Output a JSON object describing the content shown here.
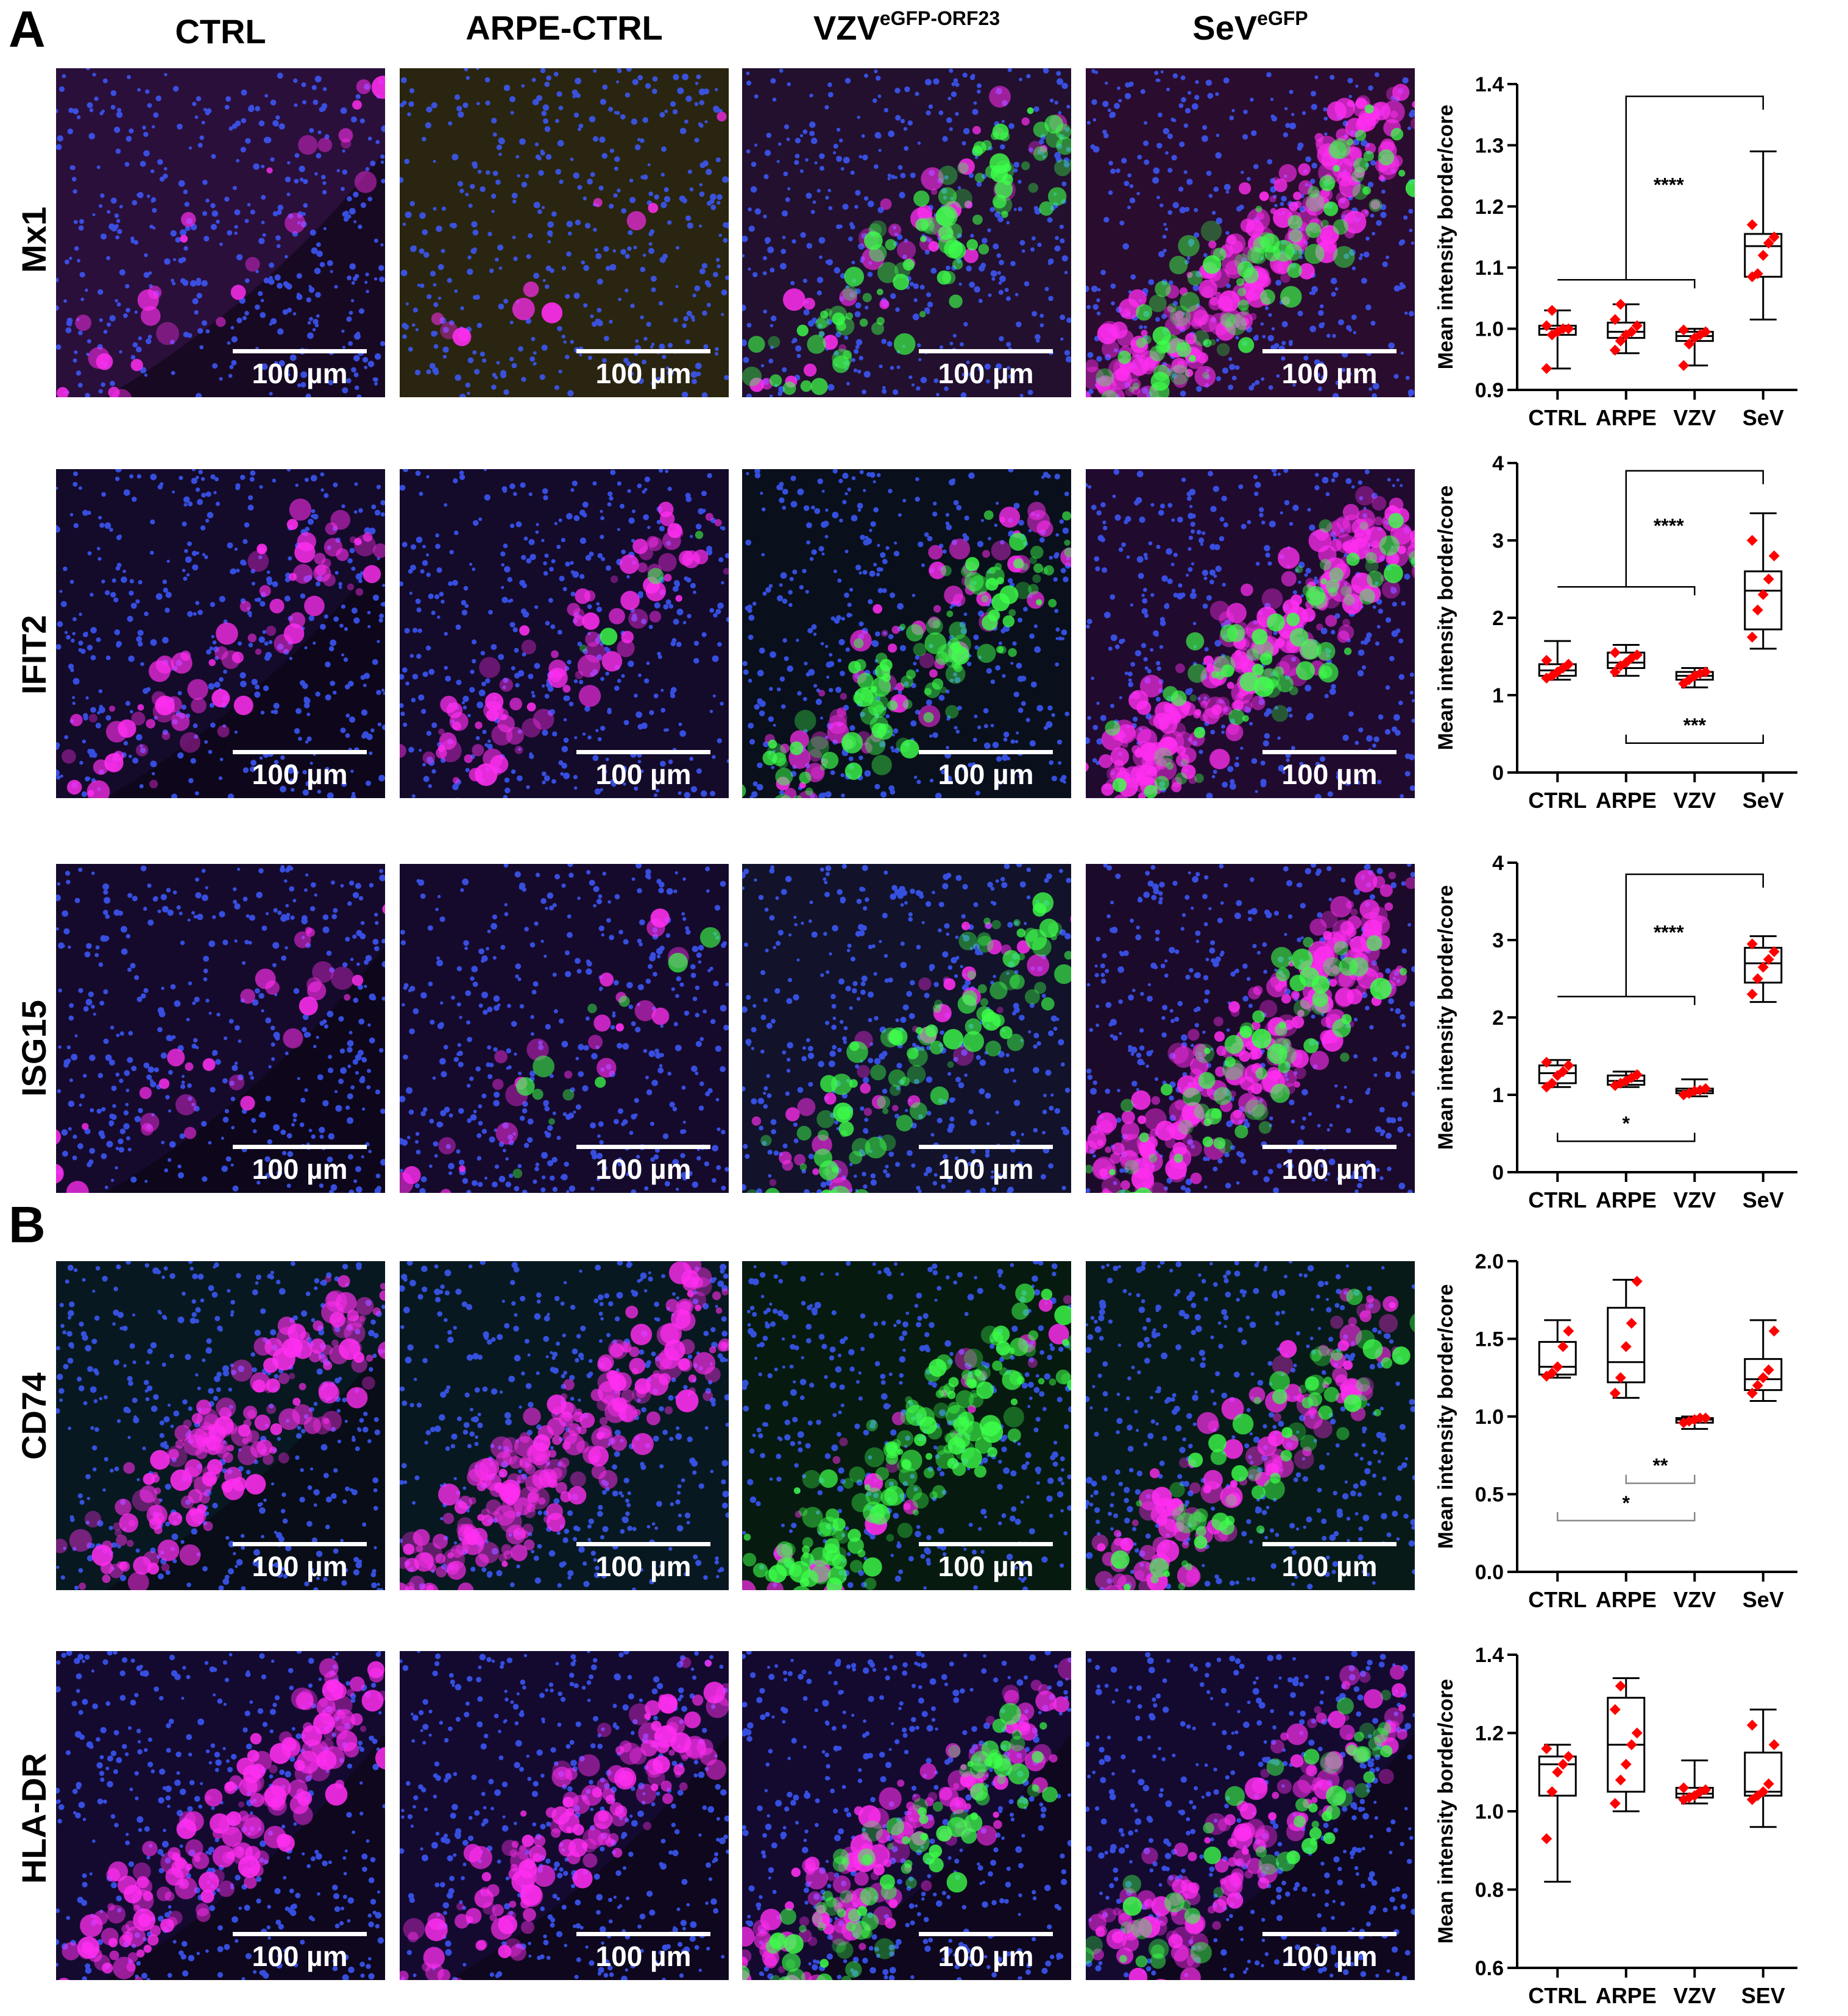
{
  "panel_letters": {
    "a": "A",
    "b": "B"
  },
  "columns": {
    "ctrl": {
      "label": "CTRL"
    },
    "arpe": {
      "label": "ARPE-CTRL"
    },
    "vzv": {
      "label": "VZV",
      "superscript": "eGFP-ORF23"
    },
    "sev": {
      "label": "SeV",
      "superscript": "eGFP"
    }
  },
  "scale_bar_label": "100 µm",
  "rows": [
    {
      "label": "Mx1",
      "magenta": 0.1,
      "green": [
        0.0,
        0.0,
        0.45,
        0.4
      ],
      "magentaLevels": [
        0.1,
        0.05,
        0.15,
        0.85
      ],
      "tint": [
        "#2a0f3a",
        "#2a2510",
        "#22102e",
        "#2a0c2e"
      ]
    },
    {
      "label": "IFIT2",
      "magenta": 0.3,
      "green": [
        0.0,
        0.02,
        0.55,
        0.35
      ],
      "magentaLevels": [
        0.3,
        0.35,
        0.25,
        0.95
      ],
      "tint": [
        "#140a2a",
        "#140a2a",
        "#0a0f1c",
        "#200a2e"
      ]
    },
    {
      "label": "ISG15",
      "magenta": 0.15,
      "green": [
        0.0,
        0.05,
        0.45,
        0.3
      ],
      "magentaLevels": [
        0.12,
        0.1,
        0.15,
        0.9
      ],
      "tint": [
        "#160a2c",
        "#160a2c",
        "#12122a",
        "#1c0a2a"
      ]
    },
    {
      "label": "CD74",
      "magenta": 0.6,
      "green": [
        0.0,
        0.0,
        0.75,
        0.3
      ],
      "magentaLevels": [
        0.7,
        0.9,
        0.1,
        0.45
      ],
      "tint": [
        "#081820",
        "#081820",
        "#061a10",
        "#081a18"
      ]
    },
    {
      "label": "HLA-DR",
      "magenta": 0.6,
      "green": [
        0.0,
        0.0,
        0.45,
        0.25
      ],
      "magentaLevels": [
        0.65,
        0.6,
        0.55,
        0.55
      ],
      "tint": [
        "#140a30",
        "#140a30",
        "#140a30",
        "#140a30"
      ]
    }
  ],
  "chart_data": [
    {
      "type": "box",
      "name": "Mx1",
      "ylabel": "Mean intensity border/core",
      "ylim": [
        0.9,
        1.4
      ],
      "yticks": [
        0.9,
        1.0,
        1.1,
        1.2,
        1.3,
        1.4
      ],
      "ytick_labels": [
        "0.9",
        "1.0",
        "1.1",
        "1.2",
        "1.3",
        "1.4"
      ],
      "categories": [
        "CTRL",
        "ARPE",
        "VZV",
        "SeV"
      ],
      "boxes": [
        {
          "min": 0.935,
          "q1": 0.99,
          "median": 1.0,
          "q3": 1.005,
          "max": 1.03,
          "points": [
            0.935,
            0.99,
            0.995,
            1.0,
            1.0,
            1.005,
            1.03
          ]
        },
        {
          "min": 0.96,
          "q1": 0.985,
          "median": 0.995,
          "q3": 1.01,
          "max": 1.04,
          "points": [
            0.965,
            0.98,
            0.99,
            0.995,
            1.005,
            1.015,
            1.04
          ]
        },
        {
          "min": 0.94,
          "q1": 0.98,
          "median": 0.988,
          "q3": 0.995,
          "max": 1.0,
          "points": [
            0.94,
            0.975,
            0.985,
            0.99,
            0.995,
            0.998
          ]
        },
        {
          "min": 1.015,
          "q1": 1.085,
          "median": 1.135,
          "q3": 1.155,
          "max": 1.29,
          "points": [
            1.085,
            1.09,
            1.12,
            1.14,
            1.15,
            1.17
          ]
        }
      ],
      "significance": [
        {
          "type": "group",
          "label": "****"
        }
      ]
    },
    {
      "type": "box",
      "name": "IFIT2",
      "ylabel": "Mean intensity border/core",
      "ylim": [
        0,
        4
      ],
      "yticks": [
        0,
        1,
        2,
        3,
        4
      ],
      "ytick_labels": [
        "0",
        "1",
        "2",
        "3",
        "4"
      ],
      "categories": [
        "CTRL",
        "ARPE",
        "VZV",
        "SeV"
      ],
      "boxes": [
        {
          "min": 1.2,
          "q1": 1.25,
          "median": 1.32,
          "q3": 1.4,
          "max": 1.7,
          "points": [
            1.22,
            1.25,
            1.3,
            1.35,
            1.4,
            1.45
          ]
        },
        {
          "min": 1.25,
          "q1": 1.35,
          "median": 1.42,
          "q3": 1.55,
          "max": 1.65,
          "points": [
            1.3,
            1.38,
            1.42,
            1.48,
            1.52,
            1.55
          ]
        },
        {
          "min": 1.1,
          "q1": 1.2,
          "median": 1.25,
          "q3": 1.3,
          "max": 1.35,
          "points": [
            1.15,
            1.2,
            1.25,
            1.28,
            1.3
          ]
        },
        {
          "min": 1.6,
          "q1": 1.85,
          "median": 2.35,
          "q3": 2.6,
          "max": 3.35,
          "points": [
            1.75,
            2.1,
            2.3,
            2.5,
            2.8,
            3.0
          ]
        }
      ],
      "significance": [
        {
          "type": "group",
          "label": "****"
        },
        {
          "type": "pair",
          "label": "***"
        }
      ]
    },
    {
      "type": "box",
      "name": "ISG15",
      "ylabel": "Mean intensity border/core",
      "ylim": [
        0,
        4
      ],
      "yticks": [
        0,
        1,
        2,
        3,
        4
      ],
      "ytick_labels": [
        "0",
        "1",
        "2",
        "3",
        "4"
      ],
      "categories": [
        "CTRL",
        "ARPE",
        "VZV",
        "SeV"
      ],
      "boxes": [
        {
          "min": 1.1,
          "q1": 1.15,
          "median": 1.28,
          "q3": 1.38,
          "max": 1.45,
          "points": [
            1.1,
            1.15,
            1.25,
            1.3,
            1.38,
            1.42
          ]
        },
        {
          "min": 1.1,
          "q1": 1.13,
          "median": 1.18,
          "q3": 1.25,
          "max": 1.3,
          "points": [
            1.12,
            1.15,
            1.18,
            1.22,
            1.26
          ]
        },
        {
          "min": 0.98,
          "q1": 1.02,
          "median": 1.05,
          "q3": 1.08,
          "max": 1.2,
          "points": [
            1.0,
            1.02,
            1.05,
            1.06,
            1.08
          ]
        },
        {
          "min": 2.2,
          "q1": 2.45,
          "median": 2.7,
          "q3": 2.9,
          "max": 3.05,
          "points": [
            2.3,
            2.5,
            2.65,
            2.75,
            2.85,
            2.95
          ]
        }
      ],
      "significance": [
        {
          "type": "group",
          "label": "****"
        },
        {
          "type": "pair",
          "label": "*"
        }
      ]
    },
    {
      "type": "box",
      "name": "CD74",
      "ylabel": "Mean intensity border/core",
      "ylim": [
        0,
        2.0
      ],
      "yticks": [
        0.0,
        0.5,
        1.0,
        1.5,
        2.0
      ],
      "ytick_labels": [
        "0.0",
        "0.5",
        "1.0",
        "1.5",
        "2.0"
      ],
      "categories": [
        "CTRL",
        "ARPE",
        "VZV",
        "SeV"
      ],
      "boxes": [
        {
          "min": 1.25,
          "q1": 1.27,
          "median": 1.32,
          "q3": 1.48,
          "max": 1.62,
          "points": [
            1.26,
            1.28,
            1.32,
            1.45,
            1.55
          ]
        },
        {
          "min": 1.12,
          "q1": 1.22,
          "median": 1.35,
          "q3": 1.7,
          "max": 1.88,
          "points": [
            1.15,
            1.25,
            1.45,
            1.6,
            1.87
          ]
        },
        {
          "min": 0.92,
          "q1": 0.96,
          "median": 0.98,
          "q3": 0.99,
          "max": 1.0,
          "points": [
            0.96,
            0.97,
            0.98,
            0.99,
            0.99
          ]
        },
        {
          "min": 1.1,
          "q1": 1.17,
          "median": 1.24,
          "q3": 1.37,
          "max": 1.62,
          "points": [
            1.15,
            1.2,
            1.25,
            1.3,
            1.55
          ]
        }
      ],
      "significance": [
        {
          "type": "pair",
          "label": "**"
        },
        {
          "type": "pair",
          "label": "*"
        }
      ]
    },
    {
      "type": "box",
      "name": "HLA-DR",
      "ylabel": "Mean intensity border/core",
      "ylim": [
        0.6,
        1.4
      ],
      "yticks": [
        0.6,
        0.8,
        1.0,
        1.2,
        1.4
      ],
      "ytick_labels": [
        "0.6",
        "0.8",
        "1.0",
        "1.2",
        "1.4"
      ],
      "categories": [
        "CTRL",
        "ARPE",
        "VZV",
        "SEV"
      ],
      "boxes": [
        {
          "min": 0.82,
          "q1": 1.04,
          "median": 1.12,
          "q3": 1.14,
          "max": 1.17,
          "points": [
            0.93,
            1.05,
            1.1,
            1.12,
            1.14,
            1.16
          ]
        },
        {
          "min": 1.0,
          "q1": 1.05,
          "median": 1.17,
          "q3": 1.29,
          "max": 1.34,
          "points": [
            1.02,
            1.08,
            1.12,
            1.17,
            1.2,
            1.26,
            1.32
          ]
        },
        {
          "min": 1.02,
          "q1": 1.035,
          "median": 1.045,
          "q3": 1.06,
          "max": 1.13,
          "points": [
            1.03,
            1.035,
            1.04,
            1.05,
            1.055,
            1.06
          ]
        },
        {
          "min": 0.96,
          "q1": 1.04,
          "median": 1.05,
          "q3": 1.15,
          "max": 1.26,
          "points": [
            1.03,
            1.04,
            1.05,
            1.07,
            1.17,
            1.22
          ]
        }
      ],
      "significance": []
    }
  ]
}
